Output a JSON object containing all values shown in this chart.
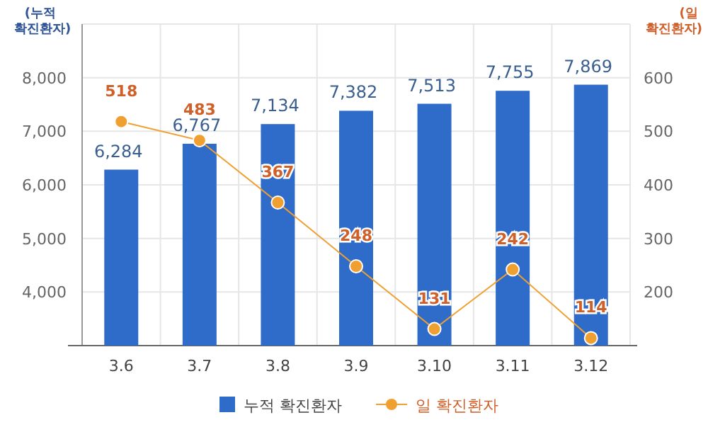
{
  "chart_data": {
    "type": "bar",
    "ylabel": "(누적 확진환자)",
    "y2label": "(일 확진환자)",
    "categories": [
      "3.6",
      "3.7",
      "3.8",
      "3.9",
      "3.10",
      "3.11",
      "3.12"
    ],
    "series": [
      {
        "name": "누적 확진환자",
        "color": "#2f6bc8",
        "values": [
          6284,
          6767,
          7134,
          7382,
          7513,
          7755,
          7869
        ],
        "value_labels": [
          "6,284",
          "6,767",
          "7,134",
          "7,382",
          "7,513",
          "7,755",
          "7,869"
        ]
      },
      {
        "name": "일 확진환자",
        "type": "line",
        "axis": "y2",
        "color": "#f0a030",
        "marker": "circle",
        "values": [
          518,
          483,
          367,
          248,
          131,
          242,
          114
        ],
        "value_labels": [
          "518",
          "483",
          "367",
          "248",
          "131",
          "242",
          "114"
        ]
      }
    ],
    "ylim": [
      3000,
      9000
    ],
    "yticks": [
      {
        "value": 4000,
        "label": "4,000"
      },
      {
        "value": 5000,
        "label": "5,000"
      },
      {
        "value": 6000,
        "label": "6,000"
      },
      {
        "value": 7000,
        "label": "7,000"
      },
      {
        "value": 8000,
        "label": "8,000"
      }
    ],
    "y2lim": [
      100,
      700
    ],
    "y2ticks": [
      200,
      300,
      400,
      500,
      600
    ],
    "grid": true,
    "legend": "bottom"
  }
}
